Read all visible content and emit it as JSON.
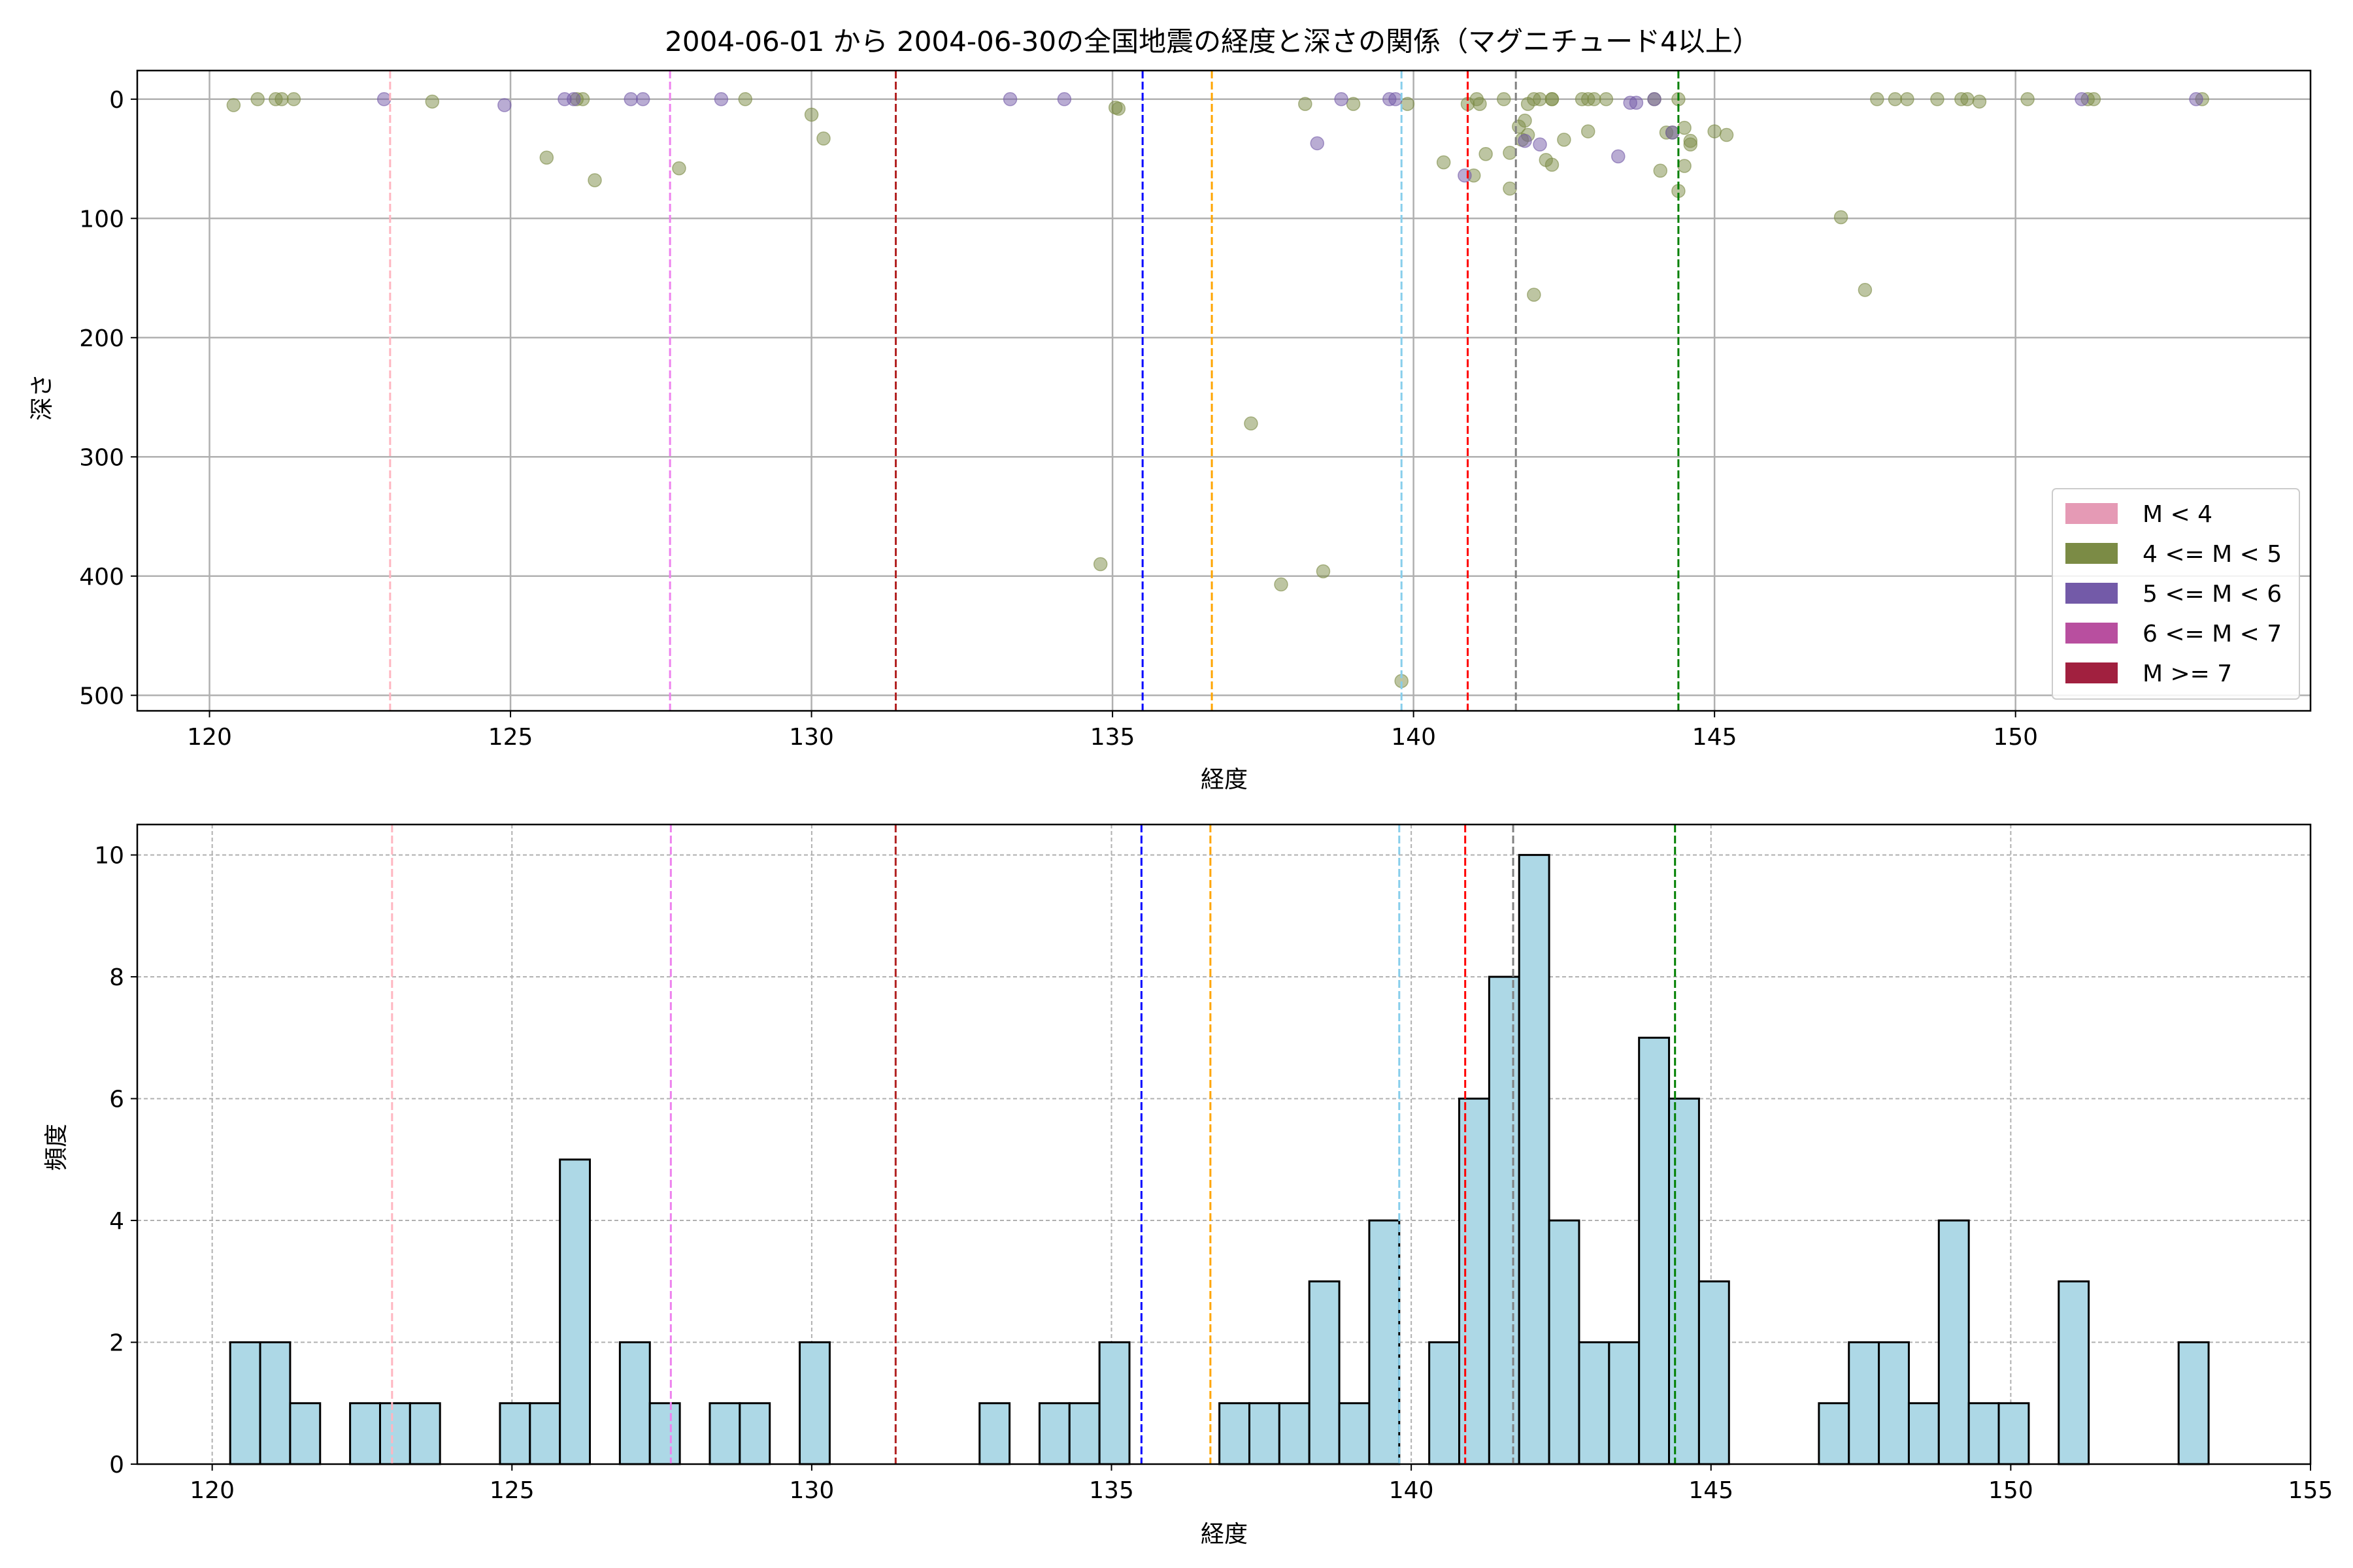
{
  "chart_data": [
    {
      "type": "scatter",
      "title": "2004-06-01 から 2004-06-30の全国地震の経度と深さの関係（マグニチュード4以上）",
      "xlabel": "経度",
      "ylabel": "深さ",
      "xlim": [
        118.8,
        154.9
      ],
      "ylim": [
        513,
        -24
      ],
      "y_inverted": true,
      "xticks": [
        120,
        125,
        130,
        135,
        140,
        145,
        150
      ],
      "yticks": [
        0,
        100,
        200,
        300,
        400,
        500
      ],
      "grid": true,
      "legend_position": "lower-right",
      "legend": [
        {
          "label": "M < 4",
          "color": "#e59ab5"
        },
        {
          "label": "4 <= M < 5",
          "color": "#7b8b45"
        },
        {
          "label": "5 <= M < 6",
          "color": "#735aa8"
        },
        {
          "label": "6 <= M < 7",
          "color": "#b84f9f"
        },
        {
          "label": "M >= 7",
          "color": "#a1203f"
        }
      ],
      "series": [
        {
          "color": "#7b8b45",
          "points": [
            [
              120.4,
              5
            ],
            [
              120.8,
              0
            ],
            [
              121.1,
              0
            ],
            [
              121.2,
              0
            ],
            [
              121.4,
              0
            ],
            [
              123.7,
              2
            ],
            [
              125.6,
              49
            ],
            [
              126.1,
              0
            ],
            [
              126.2,
              0
            ],
            [
              126.4,
              68
            ],
            [
              127.8,
              58
            ],
            [
              128.9,
              0
            ],
            [
              130.0,
              13
            ],
            [
              130.2,
              33
            ],
            [
              134.8,
              390
            ],
            [
              135.05,
              7
            ],
            [
              135.1,
              8
            ],
            [
              137.3,
              272
            ],
            [
              137.8,
              407
            ],
            [
              138.2,
              4
            ],
            [
              138.5,
              396
            ],
            [
              139.0,
              4
            ],
            [
              139.8,
              488
            ],
            [
              139.9,
              4
            ],
            [
              140.5,
              53
            ],
            [
              140.9,
              4
            ],
            [
              141.0,
              64
            ],
            [
              141.05,
              0
            ],
            [
              141.1,
              4
            ],
            [
              141.2,
              46
            ],
            [
              141.5,
              0
            ],
            [
              141.6,
              45
            ],
            [
              141.6,
              75
            ],
            [
              141.75,
              23
            ],
            [
              141.8,
              34
            ],
            [
              141.85,
              18
            ],
            [
              141.9,
              30
            ],
            [
              141.9,
              4
            ],
            [
              142.0,
              164
            ],
            [
              142.0,
              0
            ],
            [
              142.1,
              0
            ],
            [
              142.2,
              51
            ],
            [
              142.3,
              55
            ],
            [
              142.3,
              0
            ],
            [
              142.3,
              0
            ],
            [
              142.5,
              34
            ],
            [
              142.8,
              0
            ],
            [
              142.9,
              0
            ],
            [
              142.9,
              27
            ],
            [
              143.0,
              0
            ],
            [
              143.2,
              0
            ],
            [
              144.0,
              0
            ],
            [
              144.1,
              60
            ],
            [
              144.2,
              28
            ],
            [
              144.3,
              28
            ],
            [
              144.4,
              0
            ],
            [
              144.4,
              77
            ],
            [
              144.5,
              24
            ],
            [
              144.5,
              56
            ],
            [
              144.6,
              35
            ],
            [
              144.6,
              38
            ],
            [
              145.0,
              27
            ],
            [
              145.2,
              30
            ],
            [
              147.1,
              99
            ],
            [
              147.5,
              160
            ],
            [
              147.7,
              0
            ],
            [
              148.0,
              0
            ],
            [
              148.2,
              0
            ],
            [
              148.7,
              0
            ],
            [
              149.1,
              0
            ],
            [
              149.2,
              0
            ],
            [
              149.4,
              2
            ],
            [
              150.2,
              0
            ],
            [
              151.2,
              0
            ],
            [
              151.3,
              0
            ],
            [
              153.1,
              0
            ]
          ]
        },
        {
          "color": "#735aa8",
          "points": [
            [
              122.9,
              0
            ],
            [
              124.9,
              5
            ],
            [
              125.9,
              0
            ],
            [
              126.05,
              0
            ],
            [
              127.0,
              0
            ],
            [
              127.2,
              0
            ],
            [
              128.5,
              0
            ],
            [
              133.3,
              0
            ],
            [
              134.2,
              0
            ],
            [
              138.4,
              37
            ],
            [
              138.8,
              0
            ],
            [
              139.6,
              0
            ],
            [
              139.7,
              0
            ],
            [
              140.85,
              64
            ],
            [
              141.85,
              35
            ],
            [
              142.1,
              38
            ],
            [
              143.4,
              48
            ],
            [
              143.6,
              3
            ],
            [
              143.7,
              3
            ],
            [
              144.0,
              0
            ],
            [
              144.3,
              28
            ],
            [
              151.1,
              0
            ],
            [
              153.0,
              0
            ]
          ]
        }
      ],
      "vlines": [
        {
          "x": 123.0,
          "color": "#ffb6c1"
        },
        {
          "x": 127.65,
          "color": "#ee82ee"
        },
        {
          "x": 131.4,
          "color": "#b22222"
        },
        {
          "x": 135.5,
          "color": "#0000ff"
        },
        {
          "x": 136.65,
          "color": "#ffa500"
        },
        {
          "x": 139.8,
          "color": "#87ceeb"
        },
        {
          "x": 140.9,
          "color": "#ff0000"
        },
        {
          "x": 141.7,
          "color": "#808080"
        },
        {
          "x": 144.4,
          "color": "#008000"
        }
      ]
    },
    {
      "type": "bar",
      "xlabel": "経度",
      "ylabel": "頻度",
      "xlim": [
        118.75,
        155
      ],
      "ylim": [
        0,
        10.5
      ],
      "xticks": [
        120,
        125,
        130,
        135,
        140,
        145,
        150,
        155
      ],
      "yticks": [
        0,
        2,
        4,
        6,
        8,
        10
      ],
      "grid": true,
      "bar_color": "#add8e6",
      "bin_edges": [
        120.3,
        120.8,
        121.3,
        121.8,
        122.3,
        122.8,
        123.3,
        123.8,
        124.3,
        124.8,
        125.3,
        125.8,
        126.3,
        126.8,
        127.3,
        127.8,
        128.3,
        128.8,
        129.3,
        129.8,
        130.3,
        130.8,
        131.3,
        131.8,
        132.3,
        132.8,
        133.3,
        133.8,
        134.3,
        134.8,
        135.3,
        135.8,
        136.3,
        136.8,
        137.3,
        137.8,
        138.3,
        138.8,
        139.3,
        139.8,
        140.3,
        140.8,
        141.3,
        141.8,
        142.3,
        142.8,
        143.3,
        143.8,
        144.3,
        144.8,
        145.3,
        145.8,
        146.3,
        146.8,
        147.3,
        147.8,
        148.3,
        148.8,
        149.3,
        149.8,
        150.3,
        150.8,
        151.3,
        151.8,
        152.3,
        152.8,
        153.3
      ],
      "values": [
        2,
        2,
        1,
        0,
        1,
        1,
        1,
        0,
        0,
        1,
        1,
        5,
        0,
        2,
        1,
        0,
        1,
        1,
        0,
        2,
        0,
        0,
        0,
        0,
        0,
        1,
        0,
        1,
        1,
        2,
        0,
        0,
        0,
        1,
        1,
        1,
        3,
        1,
        4,
        0,
        2,
        6,
        8,
        10,
        4,
        2,
        2,
        7,
        6,
        3,
        0,
        0,
        0,
        1,
        2,
        2,
        1,
        4,
        1,
        1,
        0,
        3,
        0,
        0,
        0,
        2
      ],
      "vlines": [
        {
          "x": 123.0,
          "color": "#ffb6c1"
        },
        {
          "x": 127.65,
          "color": "#ee82ee"
        },
        {
          "x": 131.4,
          "color": "#b22222"
        },
        {
          "x": 135.5,
          "color": "#0000ff"
        },
        {
          "x": 136.65,
          "color": "#ffa500"
        },
        {
          "x": 139.8,
          "color": "#87ceeb"
        },
        {
          "x": 140.9,
          "color": "#ff0000"
        },
        {
          "x": 141.7,
          "color": "#808080"
        },
        {
          "x": 144.4,
          "color": "#008000"
        }
      ]
    }
  ]
}
